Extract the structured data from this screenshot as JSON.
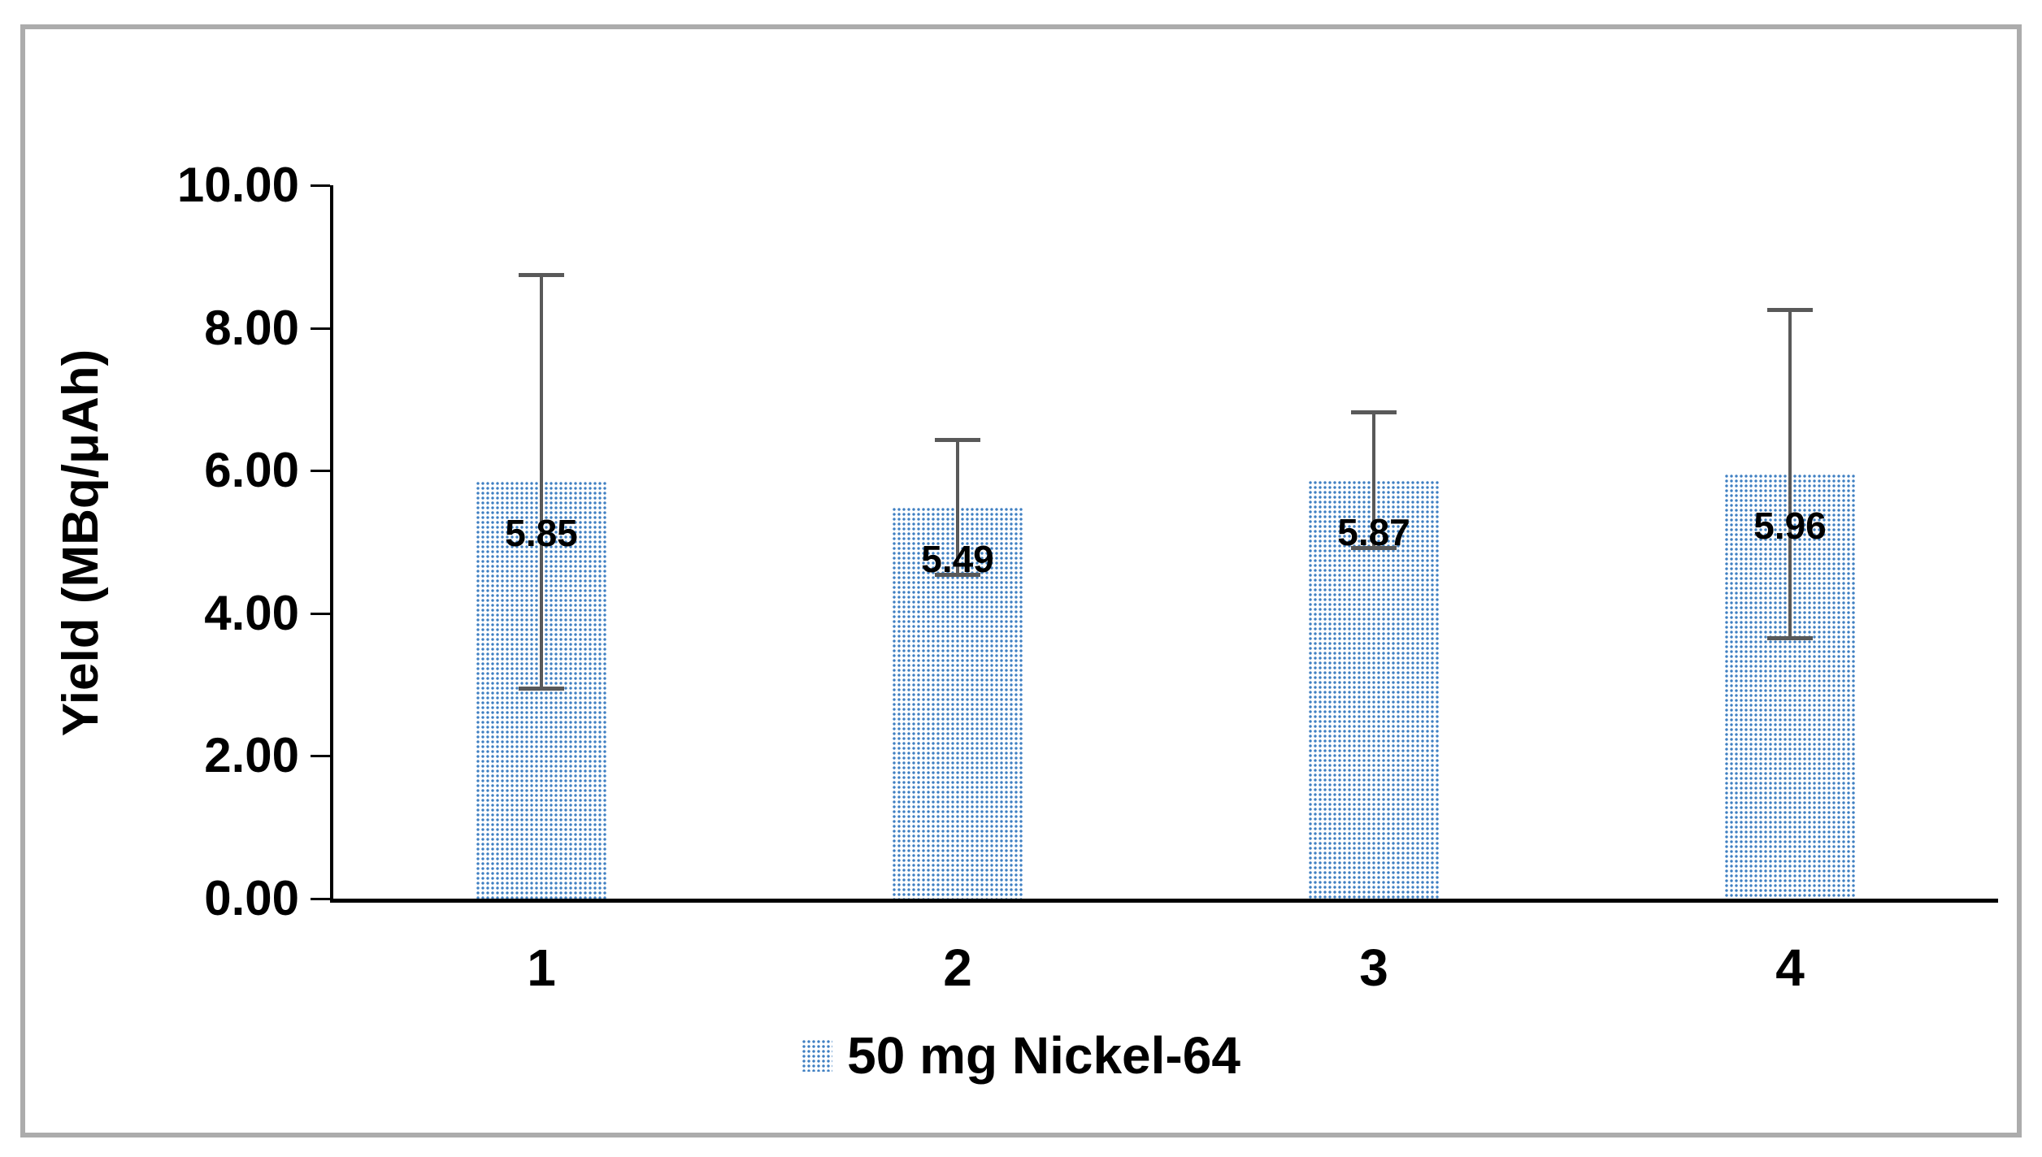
{
  "frame": {
    "border_color": "#ACACAC"
  },
  "legend": {
    "label": "50 mg Nickel-64"
  },
  "chart_data": {
    "type": "bar",
    "title": "",
    "categories": [
      "1",
      "2",
      "3",
      "4"
    ],
    "series": [
      {
        "name": "50 mg Nickel-64",
        "values": [
          5.85,
          5.49,
          5.87,
          5.96
        ],
        "data_labels": [
          "5.85",
          "5.49",
          "5.87",
          "5.96"
        ],
        "error_plus": [
          2.9,
          0.95,
          0.95,
          2.3
        ],
        "error_minus": [
          2.9,
          0.95,
          0.95,
          2.3
        ]
      }
    ],
    "xlabel": "",
    "ylabel": "Yield (MBq/μAh)",
    "ylim": [
      0,
      10
    ],
    "ytick_values": [
      0,
      2,
      4,
      6,
      8,
      10
    ],
    "yticks": [
      "0.00",
      "2.00",
      "4.00",
      "6.00",
      "8.00",
      "10.00"
    ],
    "grid": false,
    "bar_pattern": "dotted",
    "legend_position": "bottom",
    "colors": {
      "bar_dot": "#3E7FC2",
      "error_bar": "#595959",
      "axis": "#000000",
      "text": "#000000"
    }
  }
}
